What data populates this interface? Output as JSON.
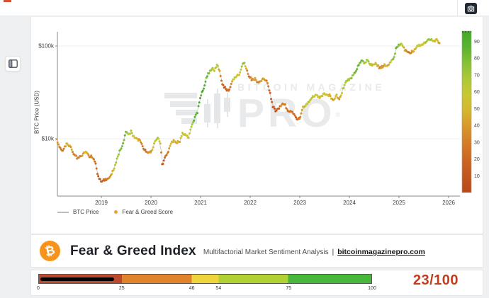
{
  "topbar": {
    "camera_icon": "camera-icon",
    "loading_chip_color": "#dd4f2e"
  },
  "side": {
    "panel_icon": "sidebar-layout-icon"
  },
  "chart": {
    "y_axis_label": "BTC Price (USD)",
    "y_ticks": [
      {
        "label": "$100k",
        "y": 41
      },
      {
        "label": "$10k",
        "y": 172
      }
    ],
    "x_ticks": [
      "2019",
      "2020",
      "2021",
      "2022",
      "2023",
      "2024",
      "2025",
      "2026"
    ],
    "legend": [
      {
        "label": "BTC Price"
      },
      {
        "label": "Fear & Greed Score"
      }
    ],
    "colorbar_ticks": [
      90,
      80,
      70,
      60,
      50,
      40,
      30,
      20,
      10
    ],
    "watermark": {
      "line1": "BITCOIN MAGAZINE",
      "line2": "PRO",
      "reg": "®"
    }
  },
  "chart_data": {
    "type": "scatter",
    "title": "BTC Price colored by Fear & Greed Score",
    "xlabel": "",
    "ylabel": "BTC Price (USD)",
    "y_scale": "log",
    "x_range": [
      2018.1,
      2026.0
    ],
    "y_gridlines_usd": [
      10000,
      100000
    ],
    "colorbar_range": [
      0,
      96
    ],
    "legend_position": "bottom-left",
    "point_format": [
      "year",
      "price_thousand_usd",
      "fear_greed_score"
    ],
    "points": [
      [
        2018.1,
        9.8,
        40
      ],
      [
        2018.16,
        8.2,
        30
      ],
      [
        2018.22,
        7.2,
        28
      ],
      [
        2018.3,
        8.9,
        50
      ],
      [
        2018.38,
        8.3,
        45
      ],
      [
        2018.45,
        6.7,
        28
      ],
      [
        2018.52,
        6.2,
        30
      ],
      [
        2018.6,
        6.5,
        38
      ],
      [
        2018.68,
        7.3,
        48
      ],
      [
        2018.75,
        6.4,
        32
      ],
      [
        2018.82,
        6.4,
        35
      ],
      [
        2018.88,
        5.6,
        20
      ],
      [
        2018.93,
        4.0,
        8
      ],
      [
        2019.0,
        3.4,
        12
      ],
      [
        2019.06,
        3.6,
        22
      ],
      [
        2019.13,
        3.7,
        28
      ],
      [
        2019.2,
        4.1,
        40
      ],
      [
        2019.28,
        5.2,
        62
      ],
      [
        2019.36,
        7.1,
        75
      ],
      [
        2019.44,
        8.9,
        80
      ],
      [
        2019.5,
        12.6,
        82
      ],
      [
        2019.54,
        10.9,
        58
      ],
      [
        2019.6,
        11.9,
        68
      ],
      [
        2019.66,
        10.4,
        52
      ],
      [
        2019.72,
        9.9,
        48
      ],
      [
        2019.78,
        9.5,
        42
      ],
      [
        2019.84,
        8.0,
        26
      ],
      [
        2019.9,
        7.3,
        25
      ],
      [
        2019.96,
        7.1,
        32
      ],
      [
        2020.02,
        7.4,
        42
      ],
      [
        2020.08,
        9.3,
        58
      ],
      [
        2020.14,
        10.3,
        65
      ],
      [
        2020.19,
        9.0,
        42
      ],
      [
        2020.23,
        4.9,
        8
      ],
      [
        2020.28,
        6.3,
        18
      ],
      [
        2020.34,
        6.9,
        30
      ],
      [
        2020.4,
        8.9,
        48
      ],
      [
        2020.46,
        9.6,
        52
      ],
      [
        2020.52,
        9.1,
        45
      ],
      [
        2020.58,
        9.2,
        44
      ],
      [
        2020.64,
        11.5,
        62
      ],
      [
        2020.7,
        11.0,
        55
      ],
      [
        2020.76,
        10.5,
        50
      ],
      [
        2020.82,
        13.5,
        72
      ],
      [
        2020.88,
        16.5,
        82
      ],
      [
        2020.94,
        19.5,
        88
      ],
      [
        2021.0,
        29.0,
        92
      ],
      [
        2021.06,
        34.0,
        88
      ],
      [
        2021.12,
        47.0,
        82
      ],
      [
        2021.18,
        52.0,
        75
      ],
      [
        2021.24,
        58.5,
        72
      ],
      [
        2021.28,
        54.0,
        58
      ],
      [
        2021.33,
        62.5,
        68
      ],
      [
        2021.38,
        56.0,
        42
      ],
      [
        2021.43,
        40.0,
        20
      ],
      [
        2021.49,
        35.5,
        15
      ],
      [
        2021.55,
        33.0,
        18
      ],
      [
        2021.6,
        35.5,
        30
      ],
      [
        2021.66,
        44.5,
        62
      ],
      [
        2021.72,
        47.0,
        58
      ],
      [
        2021.78,
        49.0,
        55
      ],
      [
        2021.84,
        63.0,
        75
      ],
      [
        2021.88,
        66.8,
        70
      ],
      [
        2021.93,
        56.0,
        35
      ],
      [
        2021.98,
        47.0,
        25
      ],
      [
        2022.04,
        43.0,
        32
      ],
      [
        2022.1,
        44.0,
        42
      ],
      [
        2022.16,
        39.5,
        28
      ],
      [
        2022.22,
        42.5,
        40
      ],
      [
        2022.28,
        45.0,
        45
      ],
      [
        2022.34,
        40.5,
        30
      ],
      [
        2022.4,
        31.0,
        15
      ],
      [
        2022.46,
        22.0,
        9
      ],
      [
        2022.52,
        20.0,
        11
      ],
      [
        2022.58,
        21.5,
        20
      ],
      [
        2022.64,
        23.8,
        33
      ],
      [
        2022.7,
        23.2,
        30
      ],
      [
        2022.76,
        20.0,
        22
      ],
      [
        2022.82,
        19.5,
        25
      ],
      [
        2022.88,
        18.8,
        22
      ],
      [
        2022.93,
        16.1,
        15
      ],
      [
        2023.0,
        16.8,
        30
      ],
      [
        2023.06,
        21.5,
        50
      ],
      [
        2023.12,
        23.2,
        52
      ],
      [
        2023.18,
        24.8,
        55
      ],
      [
        2023.25,
        28.3,
        62
      ],
      [
        2023.32,
        29.8,
        60
      ],
      [
        2023.4,
        27.3,
        50
      ],
      [
        2023.47,
        30.3,
        58
      ],
      [
        2023.54,
        30.0,
        56
      ],
      [
        2023.6,
        29.6,
        52
      ],
      [
        2023.67,
        25.8,
        42
      ],
      [
        2023.74,
        29.4,
        52
      ],
      [
        2023.8,
        26.3,
        38
      ],
      [
        2023.87,
        34.6,
        66
      ],
      [
        2023.94,
        42.5,
        72
      ],
      [
        2024.0,
        42.8,
        68
      ],
      [
        2024.06,
        47.5,
        72
      ],
      [
        2024.12,
        52.0,
        78
      ],
      [
        2024.18,
        62.5,
        85
      ],
      [
        2024.24,
        70.3,
        82
      ],
      [
        2024.3,
        64.5,
        68
      ],
      [
        2024.36,
        70.0,
        74
      ],
      [
        2024.42,
        63.5,
        55
      ],
      [
        2024.48,
        61.5,
        48
      ],
      [
        2024.54,
        66.0,
        56
      ],
      [
        2024.6,
        57.8,
        35
      ],
      [
        2024.66,
        59.5,
        42
      ],
      [
        2024.72,
        63.0,
        48
      ],
      [
        2024.78,
        61.0,
        45
      ],
      [
        2024.84,
        68.5,
        62
      ],
      [
        2024.9,
        76.5,
        78
      ],
      [
        2024.95,
        97.0,
        84
      ],
      [
        2025.0,
        101.5,
        78
      ],
      [
        2025.05,
        104.0,
        72
      ],
      [
        2025.1,
        94.0,
        48
      ],
      [
        2025.16,
        86.5,
        30
      ],
      [
        2025.22,
        84.5,
        28
      ],
      [
        2025.28,
        88.0,
        38
      ],
      [
        2025.34,
        94.5,
        52
      ],
      [
        2025.4,
        103.5,
        62
      ],
      [
        2025.46,
        102.0,
        58
      ],
      [
        2025.52,
        108.5,
        62
      ],
      [
        2025.58,
        116.0,
        70
      ],
      [
        2025.64,
        119.5,
        70
      ],
      [
        2025.7,
        114.0,
        52
      ],
      [
        2025.76,
        115.5,
        55
      ],
      [
        2025.83,
        109.0,
        38
      ]
    ]
  },
  "header": {
    "logo_glyph": "₿",
    "title": "Fear & Greed Index",
    "subtitle": "Multifactorial Market Sentiment Analysis",
    "separator": "|",
    "link": "bitcoinmagazinepro.com"
  },
  "gauge": {
    "value": 23,
    "max": 100,
    "value_label": "23/100",
    "value_color": "#c33c1d",
    "ticks": [
      0,
      25,
      46,
      54,
      75,
      100
    ],
    "segments": [
      {
        "from": 0,
        "to": 25,
        "color": "#bb4a2d"
      },
      {
        "from": 25,
        "to": 46,
        "color": "#e1832a"
      },
      {
        "from": 46,
        "to": 54,
        "color": "#efd43c"
      },
      {
        "from": 54,
        "to": 75,
        "color": "#b0d034"
      },
      {
        "from": 75,
        "to": 100,
        "color": "#48b83c"
      }
    ]
  },
  "colors": {
    "bitcoin_orange": "#f7931a",
    "score_scale": [
      "#b8491a",
      "#c3551e",
      "#cc6722",
      "#d57d26",
      "#d89a2b",
      "#d6bc2f",
      "#c6ca34",
      "#a5c938",
      "#82c035",
      "#52b02c",
      "#3ca827"
    ]
  }
}
